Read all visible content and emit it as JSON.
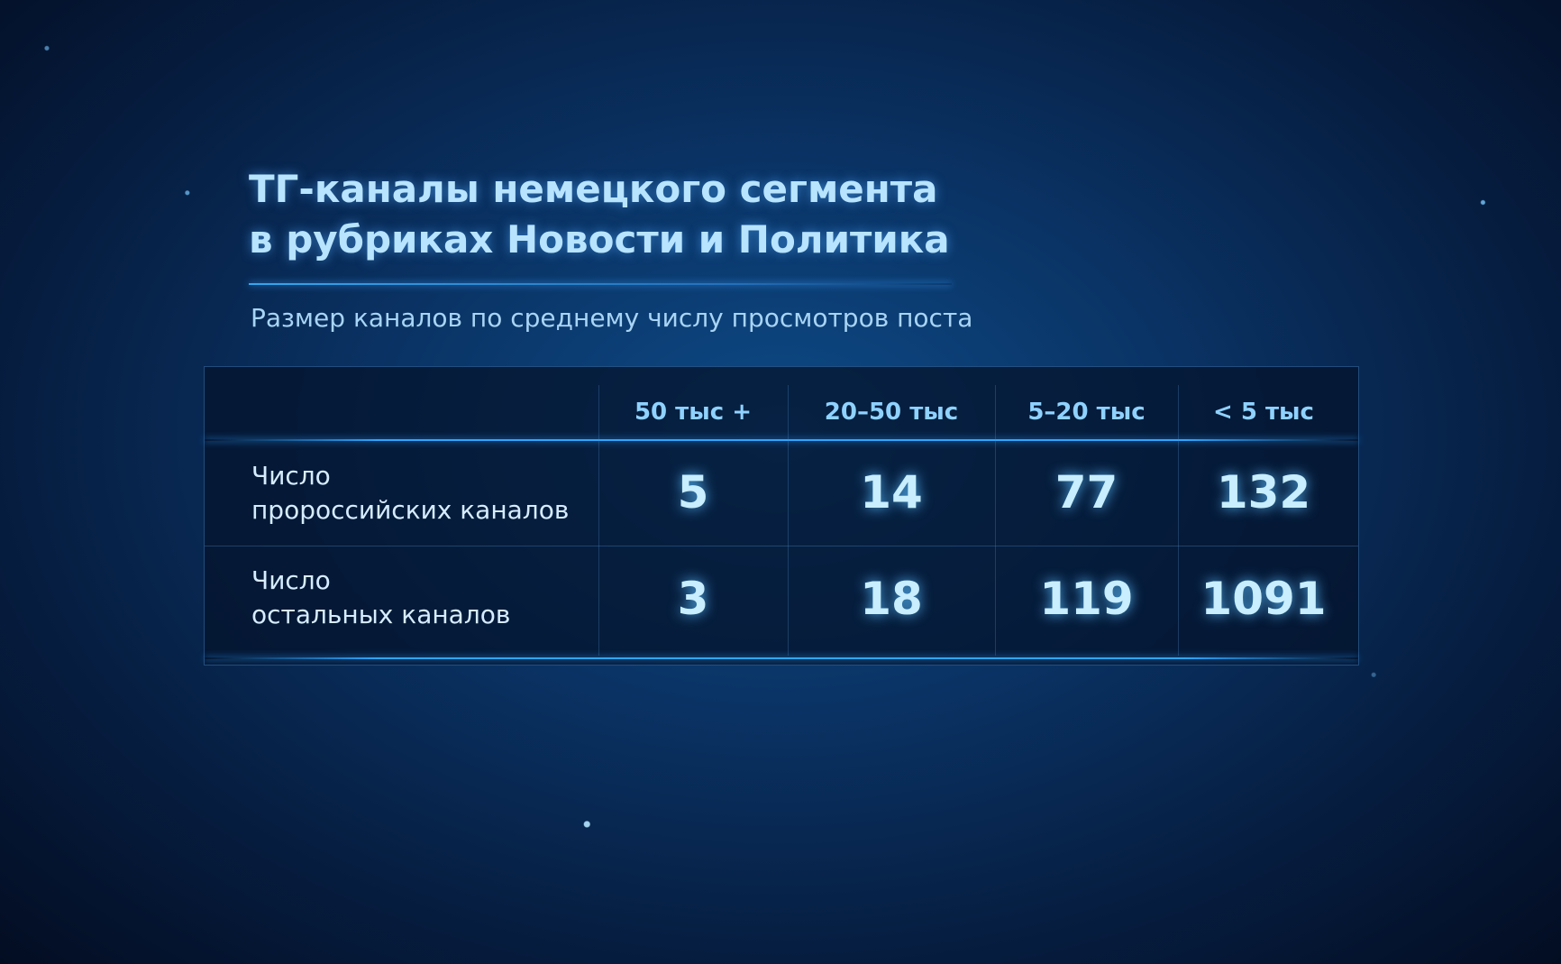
{
  "title_line1": "ТГ-каналы немецкого сегмента",
  "title_line2": "в рубриках Новости и Политика",
  "subtitle": "Размер каналов по среднему числу просмотров поста",
  "chart_data": {
    "type": "table",
    "columns": [
      "50 тыс +",
      "20–50 тыс",
      "5–20 тыс",
      "< 5 тыс"
    ],
    "rows": [
      {
        "label_line1": "Число",
        "label_line2": "пророссийских каналов",
        "values": [
          5,
          14,
          77,
          132
        ]
      },
      {
        "label_line1": "Число",
        "label_line2": "остальных каналов",
        "values": [
          3,
          18,
          119,
          1091
        ]
      }
    ]
  },
  "colors": {
    "background": "#0a3466",
    "accent": "#2fa6ff",
    "text": "#c8eeff"
  }
}
